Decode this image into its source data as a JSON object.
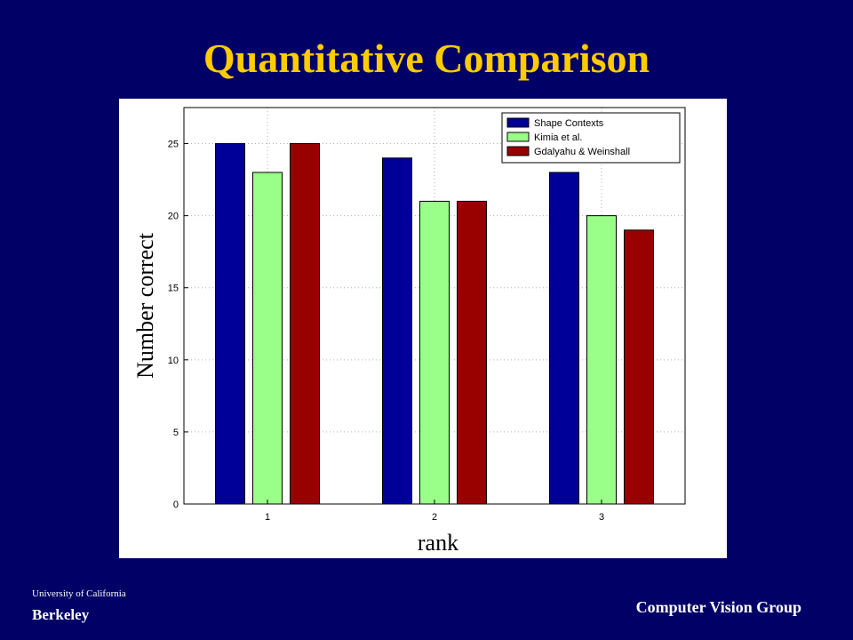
{
  "slide": {
    "title": "Quantitative Comparison",
    "footer_university": "University of California",
    "footer_campus": "Berkeley",
    "footer_group": "Computer Vision Group",
    "background_color": "#000066",
    "title_color": "#FFCC00"
  },
  "chart_data": {
    "type": "bar",
    "title": "",
    "xlabel": "rank",
    "ylabel": "Number correct",
    "categories": [
      "1",
      "2",
      "3"
    ],
    "ylim": [
      0,
      27.5
    ],
    "yticks": [
      0,
      5,
      10,
      15,
      20,
      25
    ],
    "grid": true,
    "legend_position": "top-right",
    "series": [
      {
        "name": "Shape Contexts",
        "values": [
          25,
          24,
          23
        ],
        "color": "#000099"
      },
      {
        "name": "Kimia et al.",
        "values": [
          23,
          21,
          20
        ],
        "color": "#99FF88"
      },
      {
        "name": "Gdalyahu & Weinshall",
        "values": [
          25,
          21,
          19
        ],
        "color": "#990000"
      }
    ]
  }
}
